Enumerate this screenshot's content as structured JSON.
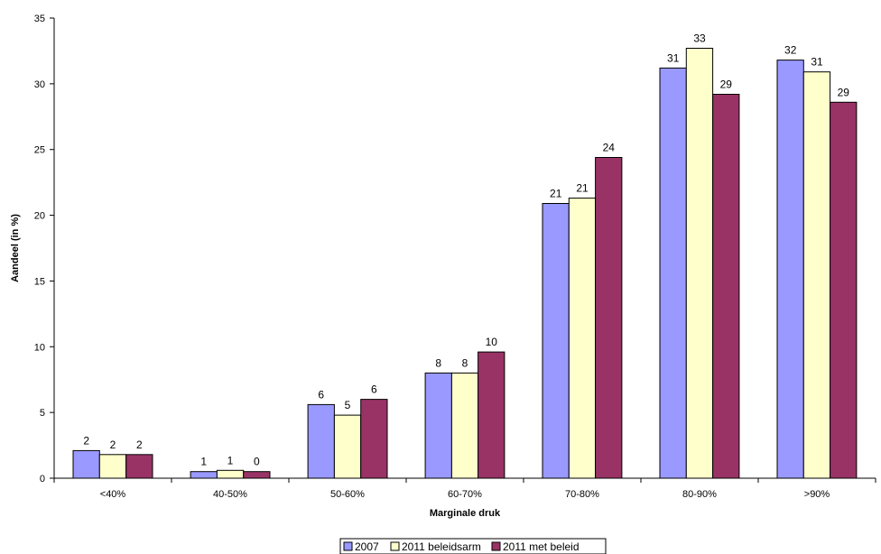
{
  "chart_data": {
    "type": "bar",
    "title": "",
    "xlabel": "Marginale druk",
    "ylabel": "Aandeel (in %)",
    "ylim": [
      0,
      35
    ],
    "yticks": [
      0,
      5,
      10,
      15,
      20,
      25,
      30,
      35
    ],
    "grid": false,
    "legend_position": "bottom",
    "categories": [
      "<40%",
      "40-50%",
      "50-60%",
      "60-70%",
      "70-80%",
      "80-90%",
      ">90%"
    ],
    "series": [
      {
        "name": "2007",
        "color": "#9999FF",
        "values": [
          2.1,
          0.5,
          5.6,
          8.0,
          20.9,
          31.2,
          31.8
        ],
        "labels": [
          "2",
          "1",
          "6",
          "8",
          "21",
          "31",
          "32"
        ]
      },
      {
        "name": "2011 beleidsarm",
        "color": "#FFFFCC",
        "values": [
          1.8,
          0.6,
          4.8,
          8.0,
          21.3,
          32.7,
          30.9
        ],
        "labels": [
          "2",
          "1",
          "5",
          "8",
          "21",
          "33",
          "31"
        ]
      },
      {
        "name": "2011 met beleid",
        "color": "#993366",
        "values": [
          1.8,
          0.5,
          6.0,
          9.6,
          24.4,
          29.2,
          28.6
        ],
        "labels": [
          "2",
          "0",
          "6",
          "10",
          "24",
          "29",
          "29"
        ]
      }
    ]
  }
}
